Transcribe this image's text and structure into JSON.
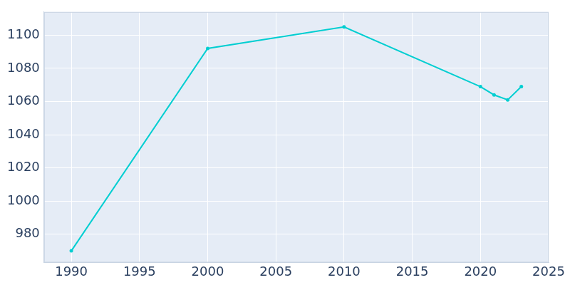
{
  "chart_data": {
    "type": "line",
    "x": [
      1990,
      2000,
      2010,
      2020,
      2021,
      2022,
      2023
    ],
    "values": [
      970,
      1092,
      1105,
      1069,
      1064,
      1061,
      1069
    ],
    "color": "#00ced1",
    "marker": "circle",
    "xlim": [
      1988,
      2025
    ],
    "xticks": [
      1990,
      1995,
      2000,
      2005,
      2010,
      2015,
      2020,
      2025
    ],
    "ylim": [
      963,
      1114
    ],
    "yticks": [
      980,
      1000,
      1020,
      1040,
      1060,
      1080,
      1100
    ],
    "grid": true
  }
}
